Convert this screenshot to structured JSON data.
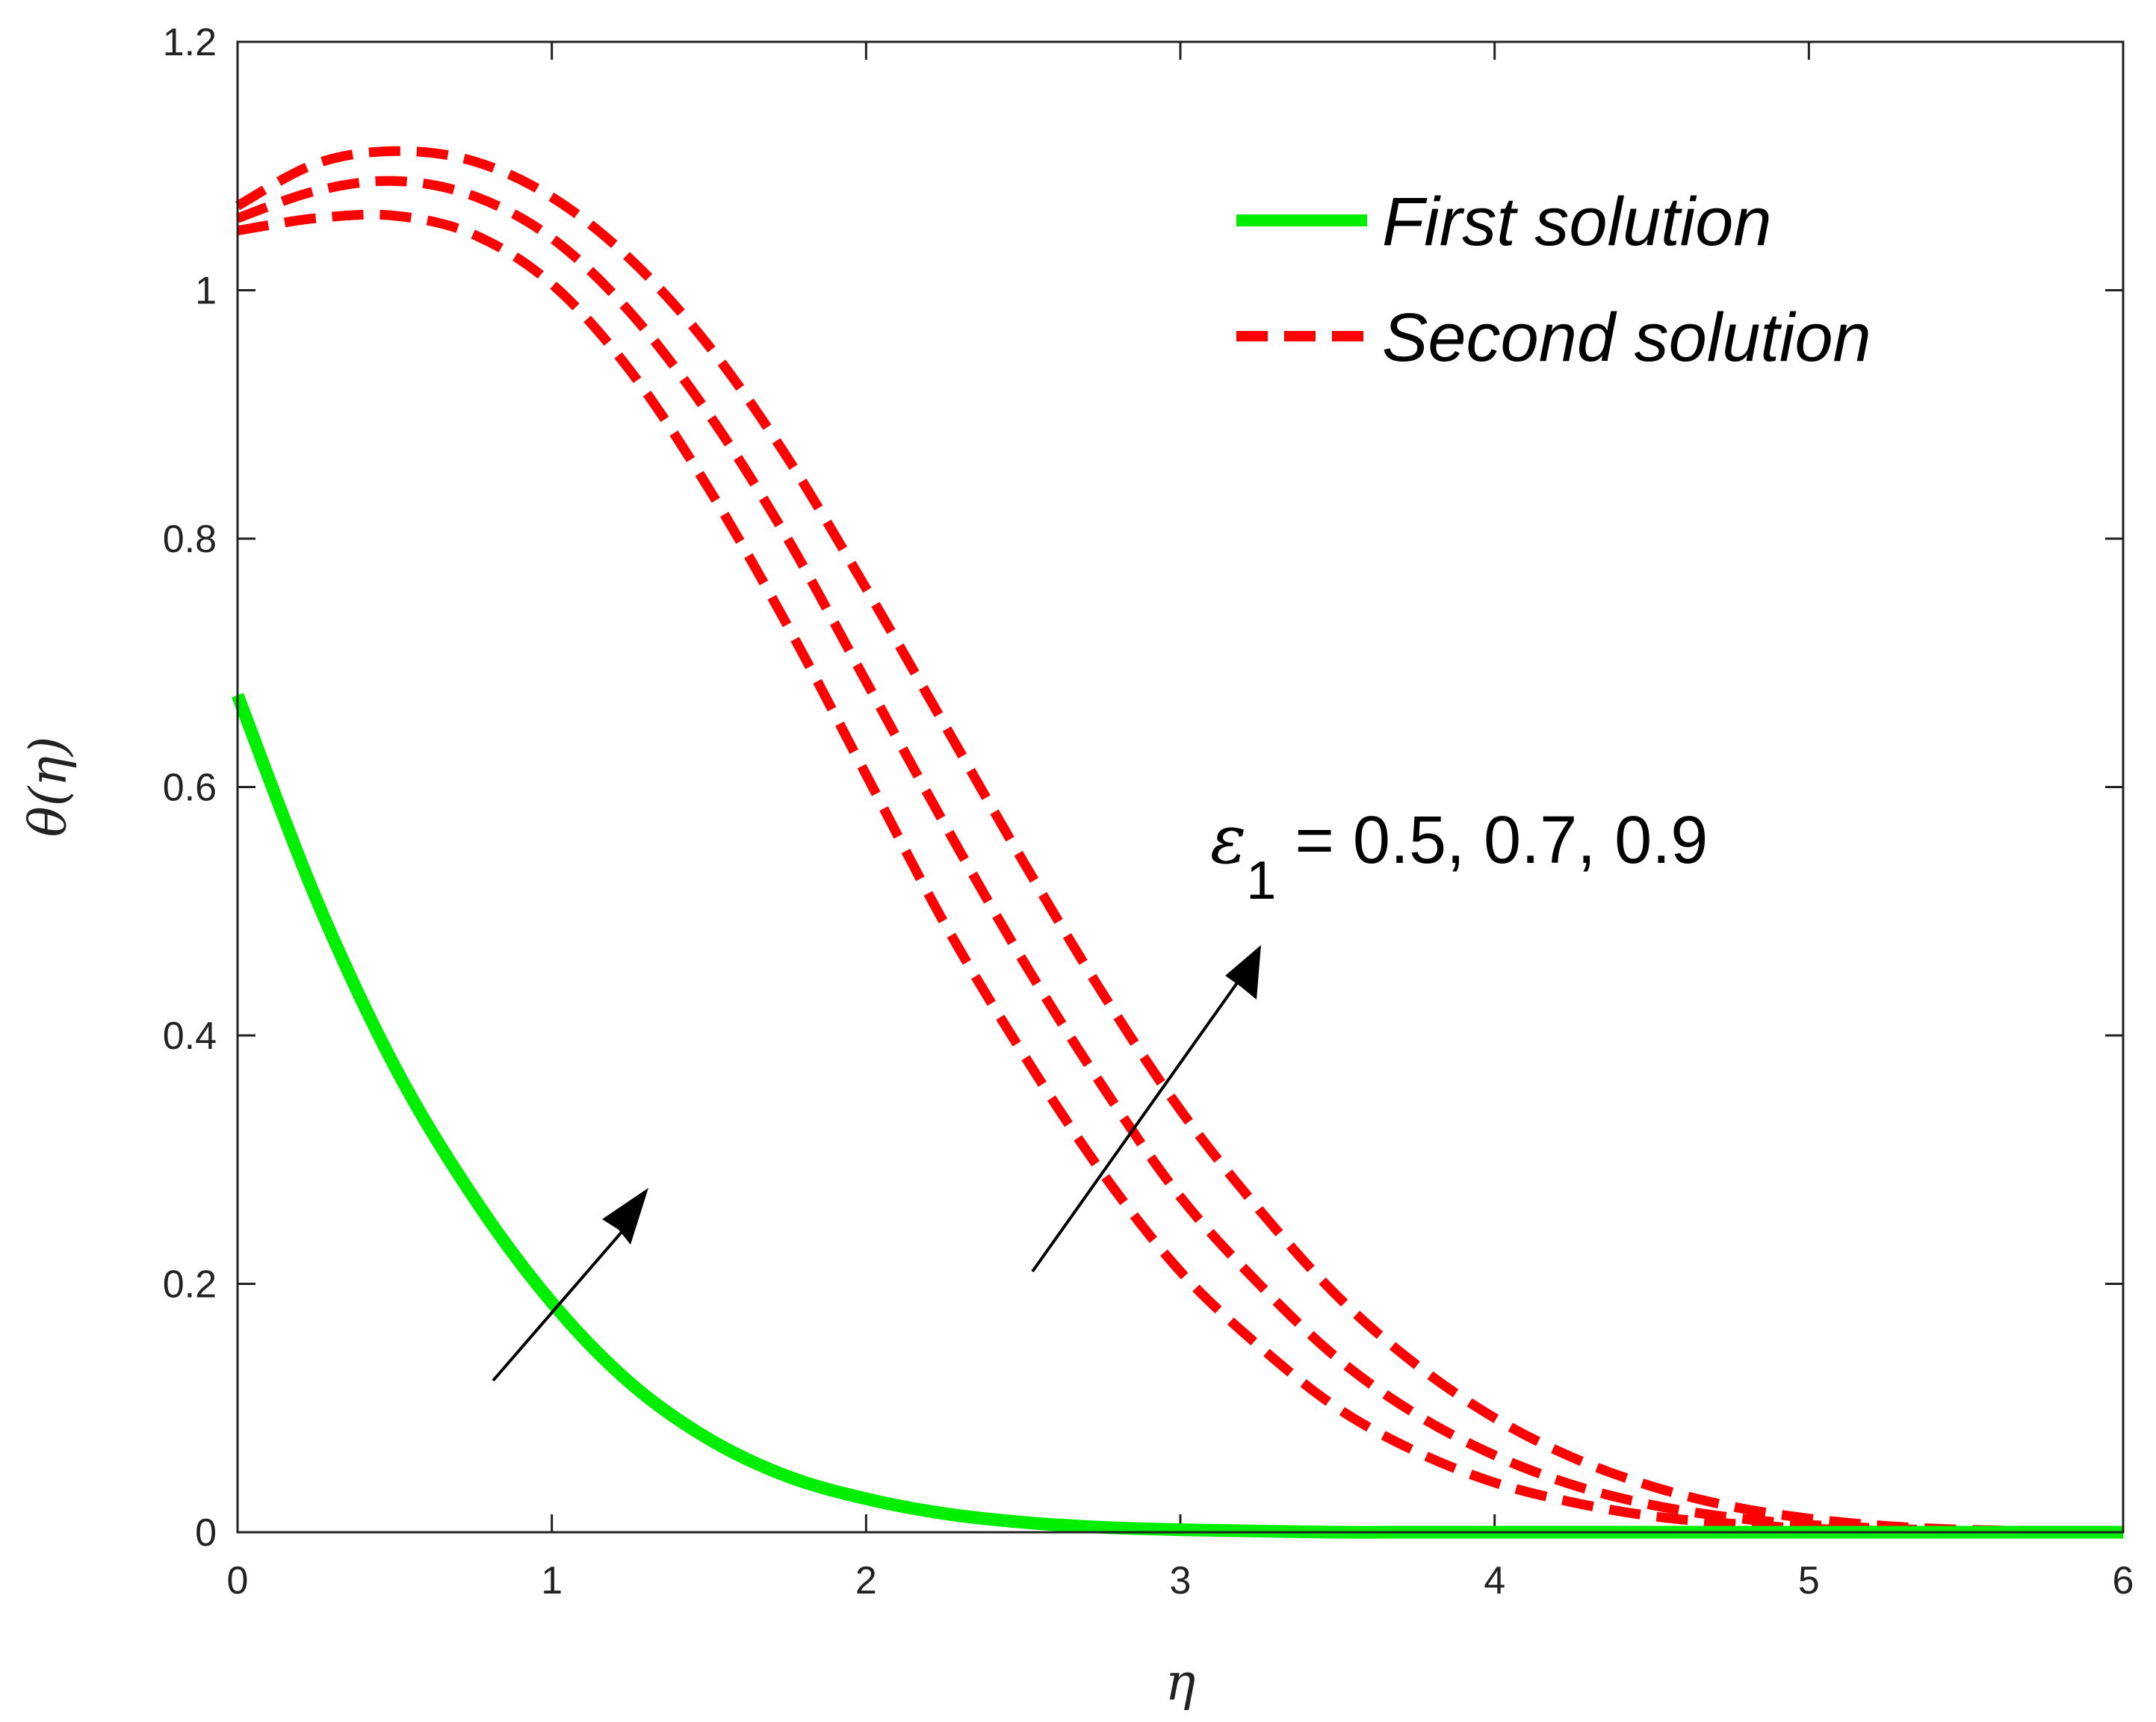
{
  "chart_data": {
    "type": "line",
    "xlabel": "η",
    "ylabel": "θ(η)",
    "xlim": [
      0,
      6
    ],
    "ylim": [
      0,
      1.2
    ],
    "x_ticks": [
      "0",
      "1",
      "2",
      "3",
      "4",
      "5",
      "6"
    ],
    "y_ticks": [
      "0",
      "0.2",
      "0.4",
      "0.6",
      "0.8",
      "1",
      "1.2"
    ],
    "grid": false,
    "legend_position": "top-right",
    "legend": [
      {
        "label": "First solution",
        "color": "#00ee00",
        "style": "solid"
      },
      {
        "label": "Second solution",
        "color": "#ff0000",
        "style": "dashed"
      }
    ],
    "annotation": {
      "symbol": "ε",
      "subscript": "1",
      "text": " = 0.5, 0.7, 0.9"
    },
    "x": [
      0,
      0.25,
      0.5,
      0.75,
      1,
      1.25,
      1.5,
      1.75,
      2,
      2.25,
      2.5,
      2.75,
      3,
      3.25,
      3.5,
      3.75,
      4,
      4.25,
      4.5,
      4.75,
      5,
      5.25,
      5.5,
      5.75,
      6
    ],
    "series": [
      {
        "group": "First solution",
        "values": [
          0.674,
          0.51,
          0.375,
          0.27,
          0.185,
          0.12,
          0.075,
          0.045,
          0.027,
          0.015,
          0.008,
          0.004,
          0.002,
          0.001,
          0,
          0,
          0,
          0,
          0,
          0,
          0,
          0,
          0,
          0,
          0
        ]
      },
      {
        "group": "Second solution",
        "values": [
          1.048,
          1.058,
          1.06,
          1.045,
          1.005,
          0.935,
          0.84,
          0.73,
          0.61,
          0.49,
          0.385,
          0.29,
          0.21,
          0.15,
          0.1,
          0.065,
          0.04,
          0.024,
          0.013,
          0.007,
          0.003,
          0.001,
          0,
          0,
          0
        ]
      },
      {
        "group": "Second solution",
        "values": [
          1.058,
          1.08,
          1.088,
          1.076,
          1.042,
          0.982,
          0.9,
          0.8,
          0.685,
          0.57,
          0.46,
          0.36,
          0.27,
          0.2,
          0.14,
          0.095,
          0.062,
          0.038,
          0.022,
          0.012,
          0.006,
          0.003,
          0.001,
          0,
          0
        ]
      },
      {
        "group": "Second solution",
        "values": [
          1.068,
          1.102,
          1.112,
          1.104,
          1.075,
          1.025,
          0.955,
          0.865,
          0.76,
          0.65,
          0.54,
          0.435,
          0.34,
          0.26,
          0.19,
          0.135,
          0.092,
          0.06,
          0.037,
          0.021,
          0.011,
          0.005,
          0.002,
          0.001,
          0
        ]
      }
    ]
  }
}
